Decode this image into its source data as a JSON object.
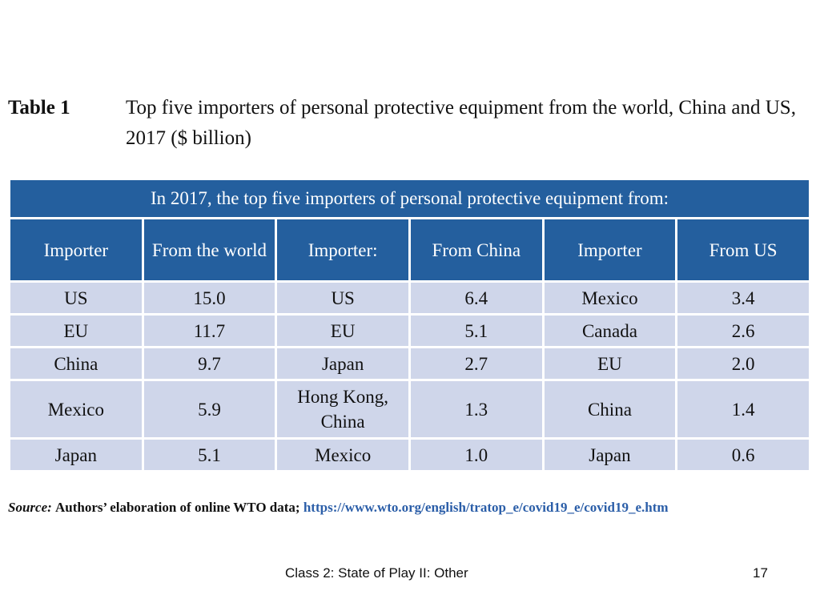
{
  "caption": {
    "label": "Table 1",
    "title": "Top five importers of personal protective equipment from the world, China and US, 2017 ($ billion)"
  },
  "table": {
    "banner": "In 2017, the top five importers of personal protective equipment from:",
    "headers": [
      "Importer",
      "From the world",
      "Importer:",
      "From China",
      "Importer",
      "From US"
    ],
    "rows": [
      [
        "US",
        "15.0",
        "US",
        "6.4",
        "Mexico",
        "3.4"
      ],
      [
        "EU",
        "11.7",
        "EU",
        "5.1",
        "Canada",
        "2.6"
      ],
      [
        "China",
        "9.7",
        "Japan",
        "2.7",
        "EU",
        "2.0"
      ],
      [
        "Mexico",
        "5.9",
        "Hong Kong, China",
        "1.3",
        "China",
        "1.4"
      ],
      [
        "Japan",
        "5.1",
        "Mexico",
        "1.0",
        "Japan",
        "0.6"
      ]
    ]
  },
  "source": {
    "label": "Source:",
    "text": "Authors’ elaboration of online WTO data;",
    "link": "https://www.wto.org/english/tratop_e/covid19_e/covid19_e.htm"
  },
  "footer": {
    "title": "Class 2:  State of Play II:  Other",
    "page_number": "17"
  }
}
